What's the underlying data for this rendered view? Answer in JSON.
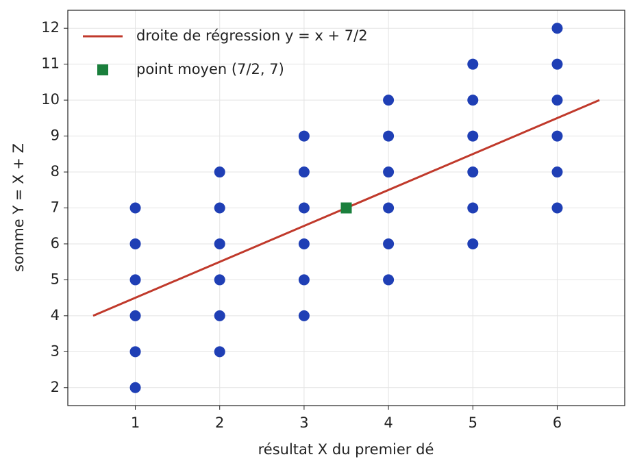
{
  "chart_data": {
    "type": "scatter",
    "x_label": "résultat X du premier dé",
    "y_label": "somme Y = X + Z",
    "xlim": [
      0.2,
      6.8
    ],
    "ylim": [
      1.5,
      12.5
    ],
    "xticks": [
      1,
      2,
      3,
      4,
      5,
      6
    ],
    "yticks": [
      2,
      3,
      4,
      5,
      6,
      7,
      8,
      9,
      10,
      11,
      12
    ],
    "grid": true,
    "legend": "upper left",
    "series": [
      {
        "type": "scatter",
        "marker": "circle",
        "color": "#1f3fb5",
        "x": [
          1,
          1,
          1,
          1,
          1,
          1,
          2,
          2,
          2,
          2,
          2,
          2,
          3,
          3,
          3,
          3,
          3,
          3,
          4,
          4,
          4,
          4,
          4,
          4,
          5,
          5,
          5,
          5,
          5,
          5,
          6,
          6,
          6,
          6,
          6,
          6
        ],
        "values": [
          2,
          3,
          4,
          5,
          6,
          7,
          3,
          4,
          5,
          6,
          7,
          8,
          4,
          5,
          6,
          7,
          8,
          9,
          5,
          6,
          7,
          8,
          9,
          10,
          6,
          7,
          8,
          9,
          10,
          11,
          7,
          8,
          9,
          10,
          11,
          12
        ]
      },
      {
        "name": "droite de régression y = x + 7/2",
        "type": "line",
        "color": "#c0392b",
        "x": [
          0.5,
          6.5
        ],
        "values": [
          4,
          10
        ]
      },
      {
        "name": "point moyen (7/2, 7)",
        "type": "scatter",
        "marker": "square",
        "color": "#1a7f3c",
        "x": [
          3.5
        ],
        "values": [
          7
        ]
      }
    ]
  }
}
